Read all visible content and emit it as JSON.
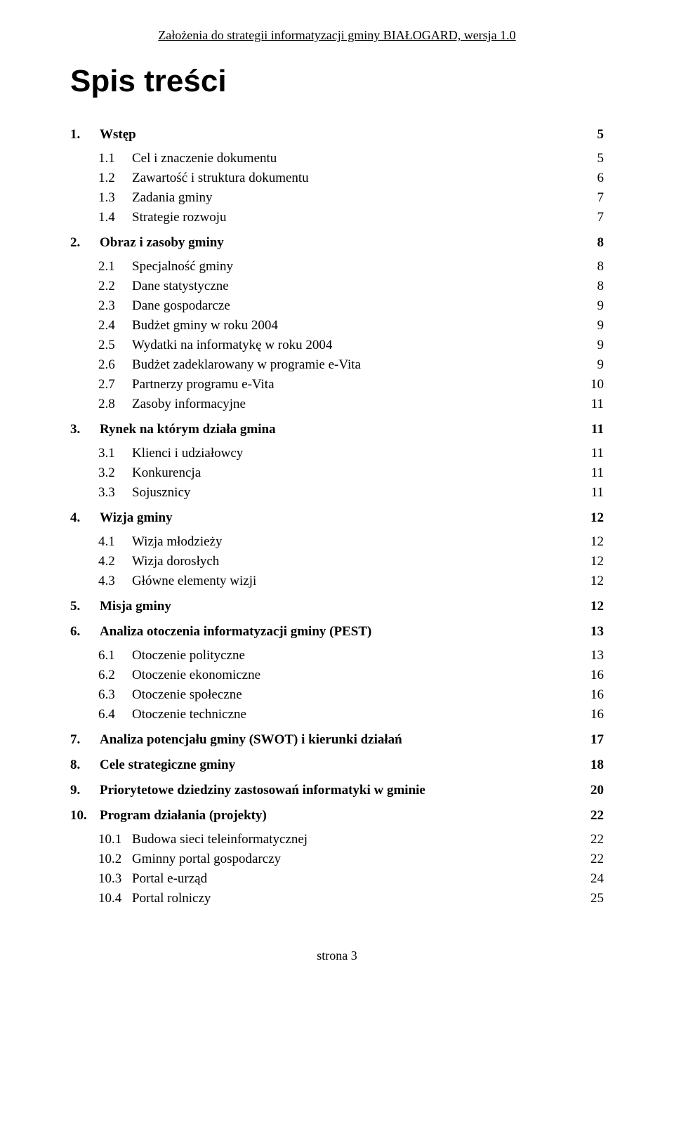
{
  "header": "Założenia do strategii informatyzacji gminy BIAŁOGARD, wersja 1.0",
  "title": "Spis treści",
  "footer": "strona 3",
  "toc": [
    {
      "lvl": 1,
      "n": "1.",
      "t": "Wstęp",
      "p": "5"
    },
    {
      "lvl": 2,
      "n": "1.1",
      "t": "Cel i znaczenie dokumentu",
      "p": "5",
      "first": true
    },
    {
      "lvl": 2,
      "n": "1.2",
      "t": "Zawartość i struktura dokumentu",
      "p": "6"
    },
    {
      "lvl": 2,
      "n": "1.3",
      "t": "Zadania gminy",
      "p": "7"
    },
    {
      "lvl": 2,
      "n": "1.4",
      "t": "Strategie rozwoju",
      "p": "7"
    },
    {
      "lvl": 1,
      "n": "2.",
      "t": "Obraz i zasoby gminy",
      "p": "8"
    },
    {
      "lvl": 2,
      "n": "2.1",
      "t": "Specjalność gminy",
      "p": "8",
      "first": true
    },
    {
      "lvl": 2,
      "n": "2.2",
      "t": "Dane statystyczne",
      "p": "8"
    },
    {
      "lvl": 2,
      "n": "2.3",
      "t": "Dane gospodarcze",
      "p": "9"
    },
    {
      "lvl": 2,
      "n": "2.4",
      "t": "Budżet gminy w roku 2004",
      "p": "9"
    },
    {
      "lvl": 2,
      "n": "2.5",
      "t": "Wydatki na informatykę w roku 2004",
      "p": "9"
    },
    {
      "lvl": 2,
      "n": "2.6",
      "t": "Budżet zadeklarowany w programie e-Vita",
      "p": "9"
    },
    {
      "lvl": 2,
      "n": "2.7",
      "t": "Partnerzy programu e-Vita",
      "p": "10"
    },
    {
      "lvl": 2,
      "n": "2.8",
      "t": "Zasoby informacyjne",
      "p": "11"
    },
    {
      "lvl": 1,
      "n": "3.",
      "t": "Rynek na którym działa gmina",
      "p": "11"
    },
    {
      "lvl": 2,
      "n": "3.1",
      "t": "Klienci i udziałowcy",
      "p": "11",
      "first": true
    },
    {
      "lvl": 2,
      "n": "3.2",
      "t": "Konkurencja",
      "p": "11"
    },
    {
      "lvl": 2,
      "n": "3.3",
      "t": "Sojusznicy",
      "p": "11"
    },
    {
      "lvl": 1,
      "n": "4.",
      "t": "Wizja gminy",
      "p": "12"
    },
    {
      "lvl": 2,
      "n": "4.1",
      "t": "Wizja młodzieży",
      "p": "12",
      "first": true
    },
    {
      "lvl": 2,
      "n": "4.2",
      "t": "Wizja dorosłych",
      "p": "12"
    },
    {
      "lvl": 2,
      "n": "4.3",
      "t": "Główne elementy wizji",
      "p": "12"
    },
    {
      "lvl": 1,
      "n": "5.",
      "t": "Misja gminy",
      "p": "12"
    },
    {
      "lvl": 1,
      "n": "6.",
      "t": "Analiza otoczenia informatyzacji gminy (PEST)",
      "p": "13"
    },
    {
      "lvl": 2,
      "n": "6.1",
      "t": "Otoczenie polityczne",
      "p": "13",
      "first": true
    },
    {
      "lvl": 2,
      "n": "6.2",
      "t": "Otoczenie ekonomiczne",
      "p": "16"
    },
    {
      "lvl": 2,
      "n": "6.3",
      "t": "Otoczenie społeczne",
      "p": "16"
    },
    {
      "lvl": 2,
      "n": "6.4",
      "t": "Otoczenie techniczne",
      "p": "16"
    },
    {
      "lvl": 1,
      "n": "7.",
      "t": "Analiza potencjału gminy (SWOT) i kierunki działań",
      "p": "17"
    },
    {
      "lvl": 1,
      "n": "8.",
      "t": "Cele strategiczne gminy",
      "p": "18"
    },
    {
      "lvl": 1,
      "n": "9.",
      "t": "Priorytetowe dziedziny zastosowań informatyki w gminie",
      "p": "20"
    },
    {
      "lvl": 1,
      "n": "10.",
      "t": "Program działania (projekty)",
      "p": "22"
    },
    {
      "lvl": 2,
      "n": "10.1",
      "t": "Budowa sieci teleinformatycznej",
      "p": "22",
      "first": true
    },
    {
      "lvl": 2,
      "n": "10.2",
      "t": "Gminny portal gospodarczy",
      "p": "22"
    },
    {
      "lvl": 2,
      "n": "10.3",
      "t": "Portal e-urząd",
      "p": "24"
    },
    {
      "lvl": 2,
      "n": "10.4",
      "t": "Portal rolniczy",
      "p": "25"
    }
  ]
}
